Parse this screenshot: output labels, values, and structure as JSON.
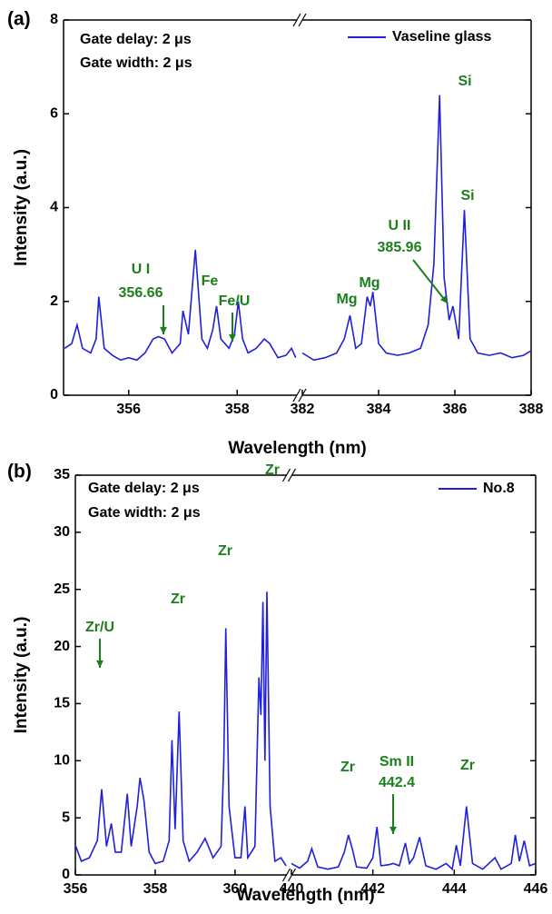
{
  "chart_data": [
    {
      "type": "line",
      "panel_label": "(a)",
      "xlabel": "Wavelength (nm)",
      "ylabel": "Intensity (a.u.)",
      "ylim": [
        0,
        8
      ],
      "yticks": [
        0,
        2,
        4,
        6,
        8
      ],
      "x_segments": [
        {
          "xlim": [
            354.8,
            359.1
          ],
          "xticks": [
            356,
            358
          ]
        },
        {
          "xlim": [
            382,
            388
          ],
          "xticks": [
            382,
            384,
            386,
            388
          ]
        }
      ],
      "legend": "top-right",
      "series": [
        {
          "name": "Vaseline glass",
          "color": "#1f1fdc",
          "segments": [
            {
              "x": [
                354.82,
                354.95,
                355.05,
                355.15,
                355.3,
                355.4,
                355.45,
                355.55,
                355.7,
                355.85,
                356.0,
                356.15,
                356.3,
                356.45,
                356.55,
                356.66,
                356.8,
                356.95,
                357.0,
                357.1,
                357.23,
                357.35,
                357.45,
                357.55,
                357.62,
                357.7,
                357.85,
                357.95,
                358.02,
                358.1,
                358.2,
                358.35,
                358.5,
                358.6,
                358.75,
                358.9,
                359.0,
                359.08
              ],
              "values": [
                1.0,
                1.1,
                1.5,
                1.0,
                0.9,
                1.2,
                2.1,
                1.0,
                0.85,
                0.75,
                0.8,
                0.75,
                0.9,
                1.2,
                1.25,
                1.2,
                0.9,
                1.1,
                1.8,
                1.3,
                3.1,
                1.2,
                1.0,
                1.4,
                1.9,
                1.2,
                1.0,
                1.3,
                2.0,
                1.2,
                0.9,
                1.0,
                1.2,
                1.1,
                0.8,
                0.85,
                1.0,
                0.8
              ]
            },
            {
              "x": [
                382.0,
                382.3,
                382.6,
                382.9,
                383.1,
                383.25,
                383.4,
                383.55,
                383.7,
                383.78,
                383.85,
                384.0,
                384.2,
                384.5,
                384.8,
                385.1,
                385.3,
                385.45,
                385.6,
                385.72,
                385.85,
                385.95,
                386.1,
                386.25,
                386.4,
                386.6,
                386.9,
                387.2,
                387.5,
                387.8,
                388.0
              ],
              "values": [
                0.9,
                0.75,
                0.8,
                0.9,
                1.2,
                1.7,
                1.0,
                1.1,
                2.1,
                1.9,
                2.2,
                1.1,
                0.9,
                0.85,
                0.9,
                1.0,
                1.5,
                2.8,
                6.4,
                2.5,
                1.6,
                1.9,
                1.2,
                3.95,
                1.2,
                0.9,
                0.85,
                0.9,
                0.8,
                0.85,
                0.95
              ]
            }
          ]
        }
      ],
      "annotations": [
        "Gate delay: 2 μs",
        "Gate width: 2 μs",
        "Si",
        "Si",
        "U II",
        "385.96",
        "U I",
        "356.66",
        "Fe",
        "Fe/U",
        "Mg",
        "Mg"
      ]
    },
    {
      "type": "line",
      "panel_label": "(b)",
      "xlabel": "Wavelength (nm)",
      "ylabel": "Intensity (a.u.)",
      "ylim": [
        0,
        35
      ],
      "yticks": [
        0,
        5,
        10,
        15,
        20,
        25,
        30,
        35
      ],
      "x_segments": [
        {
          "xlim": [
            356,
            361.3
          ],
          "xticks": [
            356,
            358,
            360
          ]
        },
        {
          "xlim": [
            440,
            446
          ],
          "xticks": [
            440,
            442,
            444,
            446
          ]
        }
      ],
      "legend": "top-right",
      "series": [
        {
          "name": "No.8",
          "color": "#1f1fdc",
          "segments": [
            {
              "x": [
                356.0,
                356.15,
                356.35,
                356.55,
                356.66,
                356.78,
                356.9,
                357.0,
                357.15,
                357.3,
                357.4,
                357.55,
                357.62,
                357.72,
                357.85,
                358.0,
                358.2,
                358.35,
                358.42,
                358.5,
                358.6,
                358.7,
                358.85,
                359.05,
                359.25,
                359.45,
                359.65,
                359.72,
                359.77,
                359.85,
                360.0,
                360.15,
                360.25,
                360.32,
                360.5,
                360.6,
                360.65,
                360.7,
                360.75,
                360.8,
                360.88,
                361.0,
                361.15,
                361.28
              ],
              "values": [
                2.6,
                1.2,
                1.5,
                3.0,
                7.5,
                2.5,
                4.5,
                2.0,
                2.0,
                7.1,
                2.5,
                6.0,
                8.5,
                6.5,
                2.0,
                1.0,
                1.2,
                3.0,
                11.8,
                4.0,
                14.3,
                3.0,
                1.2,
                2.0,
                3.2,
                1.5,
                2.5,
                10.0,
                21.6,
                6.0,
                1.5,
                1.5,
                6.0,
                1.5,
                2.5,
                17.3,
                14.0,
                23.9,
                10.0,
                24.8,
                6.0,
                1.2,
                1.5,
                0.8
              ]
            },
            {
              "x": [
                440.0,
                440.2,
                440.4,
                440.5,
                440.65,
                440.9,
                441.15,
                441.3,
                441.4,
                441.5,
                441.6,
                441.85,
                442.0,
                442.1,
                442.2,
                442.4,
                442.5,
                442.65,
                442.8,
                442.9,
                443.0,
                443.15,
                443.3,
                443.55,
                443.8,
                443.95,
                444.05,
                444.15,
                444.3,
                444.45,
                444.7,
                445.0,
                445.15,
                445.4,
                445.5,
                445.6,
                445.72,
                445.85,
                446.0
              ],
              "values": [
                1.0,
                0.6,
                1.2,
                2.3,
                0.7,
                0.5,
                0.7,
                2.0,
                3.5,
                2.2,
                0.7,
                0.6,
                1.5,
                4.2,
                0.8,
                0.9,
                1.0,
                0.8,
                2.8,
                1.0,
                1.5,
                3.3,
                0.8,
                0.5,
                1.0,
                0.5,
                2.6,
                0.8,
                6.0,
                1.0,
                0.5,
                1.5,
                0.5,
                1.0,
                3.5,
                1.2,
                3.0,
                0.8,
                1.0
              ]
            }
          ]
        }
      ],
      "annotations": [
        "Gate delay: 2 μs",
        "Gate width: 2 μs",
        "Zr/U",
        "Zr",
        "Zr",
        "Zr",
        "Zr",
        "Sm II",
        "442.4",
        "Zr"
      ]
    }
  ]
}
